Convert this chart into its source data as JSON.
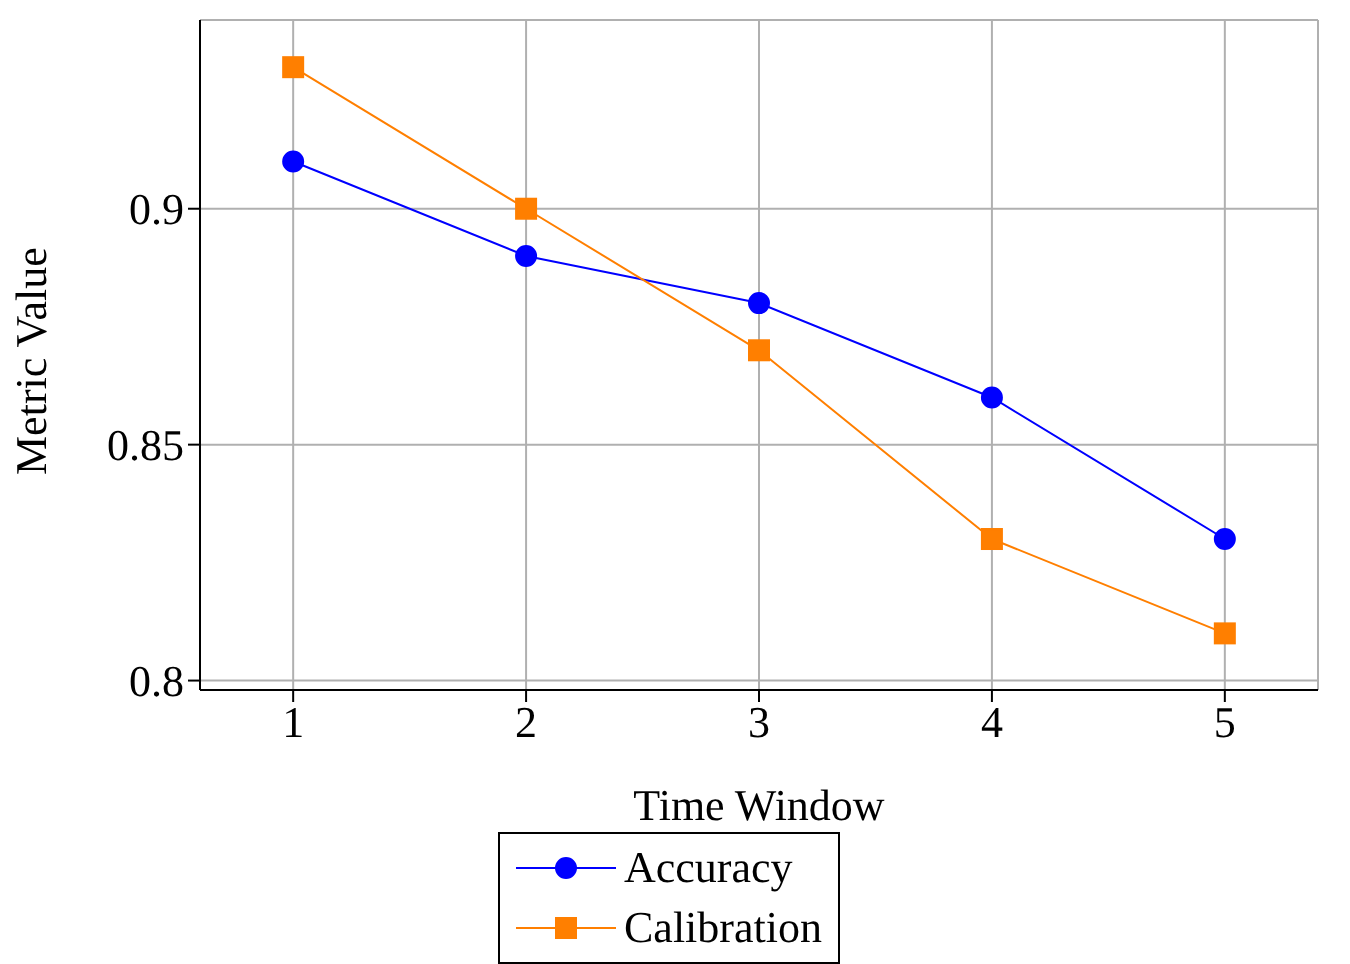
{
  "chart_data": {
    "type": "line",
    "xlabel": "Time Window",
    "ylabel": "Metric Value",
    "x": [
      1,
      2,
      3,
      4,
      5
    ],
    "series": [
      {
        "name": "Accuracy",
        "color": "#0000ff",
        "marker": "circle",
        "values": [
          0.91,
          0.89,
          0.88,
          0.86,
          0.83
        ]
      },
      {
        "name": "Calibration",
        "color": "#ff7f00",
        "marker": "square",
        "values": [
          0.93,
          0.9,
          0.87,
          0.83,
          0.81
        ]
      }
    ],
    "xlim": [
      0.6,
      5.4
    ],
    "xticks": [
      1,
      2,
      3,
      4,
      5
    ],
    "ylim": [
      0.798,
      0.94
    ],
    "yticks": [
      0.8,
      0.85,
      0.9
    ],
    "grid": true,
    "legend": "bottom",
    "line_style": "solid"
  }
}
